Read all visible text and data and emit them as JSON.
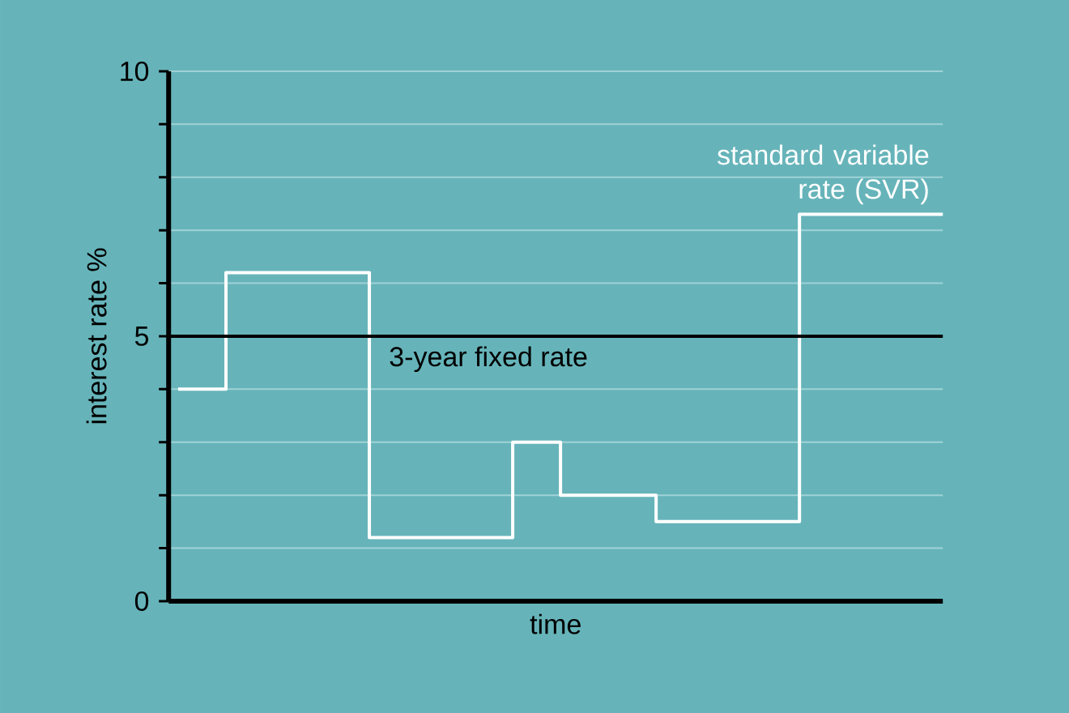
{
  "chart_data": {
    "type": "step",
    "ylabel": "interest rate %",
    "xlabel": "time",
    "categories": [
      null,
      null,
      null,
      null,
      null,
      null,
      null,
      null,
      null,
      null,
      null,
      null,
      null,
      null,
      null,
      null,
      null
    ],
    "series": [
      {
        "color": "#ffffff",
        "values": [
          4.0,
          6.2,
          6.2,
          6.2,
          1.2,
          1.2,
          1.2,
          3.0,
          2.0,
          2.0,
          1.5,
          1.5,
          1.5,
          7.3,
          7.3,
          7.3,
          7.3
        ]
      }
    ],
    "ylim": [
      0,
      10
    ],
    "yticks": [
      0,
      {
        "value": 1,
        "label": null
      },
      {
        "value": 2,
        "label": null
      },
      {
        "value": 3,
        "label": null
      },
      {
        "value": 4,
        "label": null
      },
      5,
      {
        "value": 6,
        "label": null
      },
      {
        "value": 7,
        "label": null
      },
      {
        "value": 8,
        "label": null
      },
      {
        "value": 9,
        "label": null
      },
      10
    ],
    "grid": "y",
    "tick_labels": "y",
    "ref_lines": [
      {
        "axis": "y",
        "value": 5,
        "label": "3-year fixed rate",
        "color": "#000000"
      }
    ],
    "annotations": [
      "standard variable rate (SVR)"
    ]
  }
}
